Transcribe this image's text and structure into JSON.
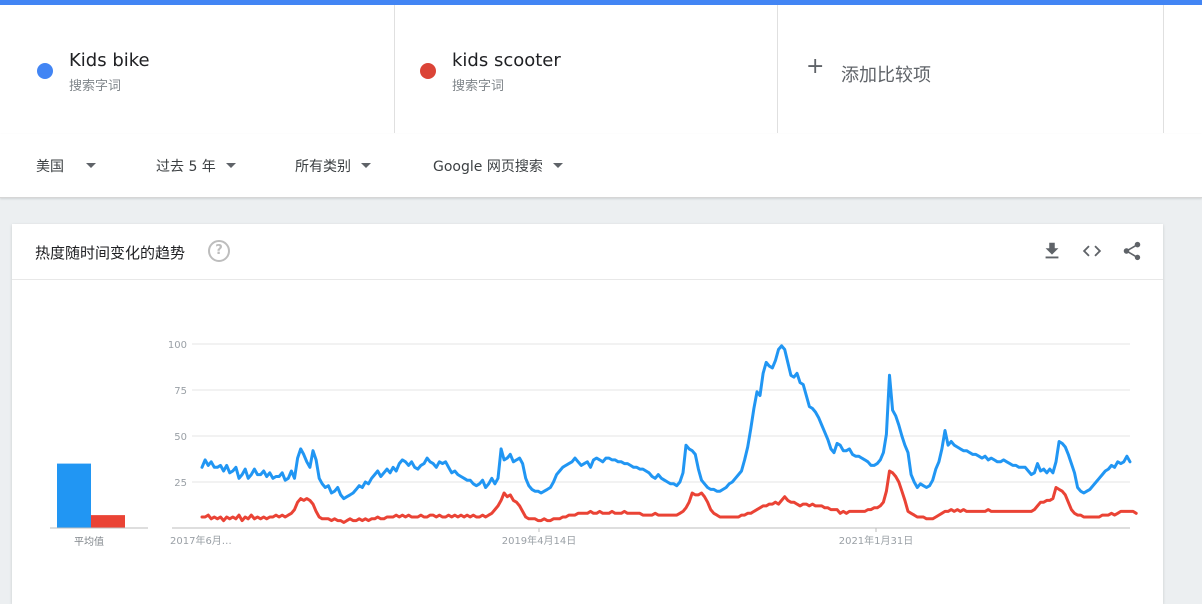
{
  "terms": [
    {
      "name": "Kids bike",
      "subtitle": "搜索字词",
      "color": "#4285f4"
    },
    {
      "name": "kids scooter",
      "subtitle": "搜索字词",
      "color": "#db4437"
    }
  ],
  "add_compare": {
    "icon": "plus-icon",
    "label": "添加比较项"
  },
  "filters": {
    "region": "美国",
    "time_range": "过去 5 年",
    "category": "所有类别",
    "search_type": "Google 网页搜索"
  },
  "card": {
    "title": "热度随时间变化的趋势",
    "help_icon": "?",
    "icons": [
      "download-icon",
      "embed-code-icon",
      "share-icon"
    ],
    "average_label": "平均值"
  },
  "chart_data": {
    "type": "line",
    "ylim": [
      0,
      100
    ],
    "y_ticks": [
      "100",
      "75",
      "50",
      "25"
    ],
    "x_ticks": [
      "2017年6月…",
      "2019年4月14日",
      "2021年1月31日"
    ],
    "averages": {
      "Kids bike": 35,
      "kids scooter": 7
    },
    "series": [
      {
        "name": "Kids bike",
        "color": "#2196f3",
        "values": [
          33,
          37,
          34,
          36,
          33,
          33,
          34,
          31,
          34,
          30,
          31,
          33,
          27,
          29,
          32,
          27,
          29,
          32,
          29,
          29,
          31,
          28,
          30,
          27,
          28,
          28,
          30,
          26,
          27,
          31,
          27,
          38,
          43,
          40,
          36,
          33,
          42,
          37,
          27,
          24,
          22,
          23,
          19,
          20,
          22,
          18,
          16,
          17,
          18,
          19,
          21,
          23,
          22,
          25,
          24,
          27,
          29,
          31,
          28,
          30,
          32,
          30,
          33,
          31,
          35,
          37,
          36,
          34,
          36,
          33,
          32,
          34,
          35,
          38,
          36,
          35,
          33,
          36,
          35,
          36,
          33,
          30,
          31,
          29,
          28,
          27,
          26,
          26,
          24,
          23,
          24,
          26,
          22,
          24,
          27,
          24,
          27,
          43,
          37,
          38,
          40,
          36,
          37,
          38,
          35,
          27,
          23,
          21,
          20,
          20,
          19,
          20,
          21,
          22,
          25,
          29,
          31,
          33,
          34,
          35,
          36,
          38,
          36,
          34,
          35,
          36,
          33,
          37,
          38,
          37,
          36,
          38,
          38,
          37,
          37,
          36,
          36,
          35,
          35,
          34,
          33,
          33,
          32,
          32,
          31,
          30,
          28,
          27,
          29,
          27,
          26,
          25,
          24,
          24,
          23,
          25,
          30,
          45,
          43,
          42,
          40,
          32,
          26,
          24,
          22,
          21,
          21,
          20,
          20,
          21,
          22,
          24,
          25,
          27,
          29,
          31,
          37,
          44,
          54,
          65,
          74,
          72,
          84,
          90,
          88,
          87,
          91,
          97,
          99,
          97,
          90,
          83,
          82,
          84,
          79,
          78,
          72,
          66,
          65,
          63,
          60,
          56,
          52,
          48,
          43,
          41,
          46,
          45,
          42,
          42,
          43,
          40,
          39,
          39,
          38,
          37,
          36,
          34,
          34,
          35,
          37,
          41,
          51,
          83,
          64,
          61,
          56,
          50,
          45,
          41,
          29,
          25,
          22,
          24,
          23,
          22,
          23,
          26,
          32,
          36,
          43,
          53,
          45,
          47,
          45,
          44,
          43,
          42,
          42,
          41,
          40,
          40,
          39,
          38,
          39,
          37,
          38,
          37,
          36,
          36,
          37,
          36,
          35,
          34,
          34,
          33,
          33,
          33,
          31,
          29,
          30,
          35,
          31,
          32,
          30,
          32,
          30,
          36,
          47,
          46,
          44,
          40,
          35,
          30,
          22,
          20,
          19,
          20,
          21,
          23,
          25,
          27,
          29,
          31,
          32,
          34,
          33,
          36,
          35,
          36,
          39,
          36
        ]
      },
      {
        "name": "kids scooter",
        "color": "#ea4335",
        "values": [
          6,
          6,
          7,
          5,
          6,
          5,
          6,
          4,
          6,
          5,
          6,
          5,
          7,
          4,
          6,
          5,
          7,
          5,
          6,
          5,
          6,
          5,
          6,
          6,
          7,
          6,
          7,
          6,
          7,
          8,
          10,
          14,
          16,
          15,
          16,
          15,
          13,
          9,
          6,
          5,
          5,
          5,
          4,
          5,
          4,
          4,
          3,
          4,
          5,
          4,
          4,
          5,
          4,
          5,
          4,
          5,
          5,
          6,
          5,
          5,
          6,
          6,
          6,
          7,
          6,
          7,
          6,
          7,
          6,
          6,
          6,
          7,
          6,
          6,
          7,
          7,
          6,
          7,
          6,
          6,
          7,
          6,
          7,
          6,
          7,
          6,
          7,
          6,
          7,
          6,
          6,
          7,
          6,
          7,
          8,
          10,
          12,
          15,
          19,
          17,
          18,
          15,
          14,
          12,
          9,
          6,
          5,
          5,
          5,
          4,
          4,
          5,
          4,
          4,
          5,
          5,
          5,
          6,
          6,
          7,
          7,
          7,
          8,
          8,
          8,
          8,
          9,
          8,
          8,
          9,
          8,
          8,
          8,
          9,
          8,
          8,
          8,
          9,
          8,
          8,
          8,
          8,
          8,
          7,
          7,
          7,
          7,
          8,
          7,
          7,
          7,
          7,
          7,
          7,
          7,
          8,
          9,
          11,
          14,
          19,
          18,
          18,
          19,
          17,
          14,
          10,
          8,
          7,
          6,
          6,
          6,
          6,
          6,
          6,
          6,
          7,
          7,
          8,
          8,
          9,
          10,
          11,
          12,
          12,
          13,
          13,
          14,
          13,
          15,
          17,
          15,
          14,
          14,
          13,
          12,
          13,
          13,
          12,
          13,
          12,
          12,
          12,
          11,
          11,
          10,
          10,
          10,
          8,
          9,
          8,
          9,
          9,
          9,
          9,
          9,
          9,
          10,
          10,
          11,
          11,
          12,
          14,
          20,
          31,
          30,
          28,
          25,
          20,
          15,
          9,
          8,
          7,
          6,
          6,
          6,
          5,
          5,
          5,
          6,
          7,
          8,
          9,
          9,
          10,
          9,
          10,
          9,
          10,
          9,
          9,
          9,
          9,
          9,
          9,
          9,
          10,
          9,
          9,
          9,
          9,
          9,
          9,
          9,
          9,
          9,
          9,
          9,
          9,
          9,
          9,
          10,
          12,
          14,
          14,
          15,
          15,
          16,
          22,
          21,
          20,
          18,
          14,
          10,
          8,
          7,
          7,
          6,
          6,
          6,
          6,
          6,
          6,
          7,
          7,
          7,
          8,
          7,
          8,
          9,
          9,
          9,
          9,
          9,
          8
        ]
      }
    ]
  }
}
